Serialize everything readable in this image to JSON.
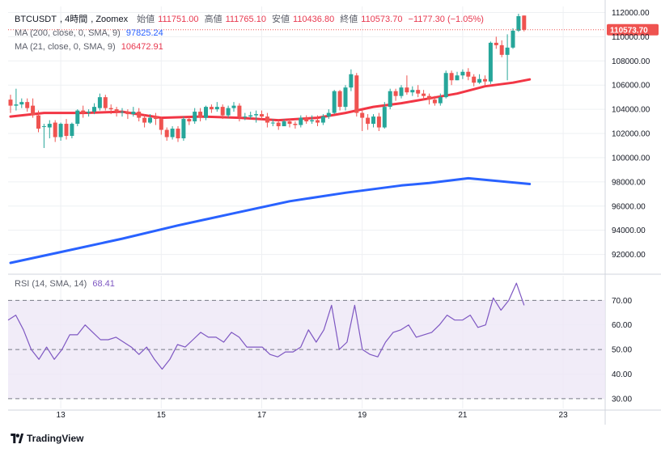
{
  "header": {
    "symbol": "BTCUSDT",
    "interval": "4時間",
    "exchange": "Zoomex",
    "open_label": "始値",
    "open": "111751.00",
    "high_label": "高値",
    "high": "111765.10",
    "low_label": "安値",
    "low": "110436.80",
    "close_label": "終値",
    "close": "110573.70",
    "change": "−1177.30 (−1.05%)"
  },
  "indicators": {
    "ma200_label": "MA (200, close, 0, SMA, 9)",
    "ma200_value": "97825.24",
    "ma21_label": "MA (21, close, 0, SMA, 9)",
    "ma21_value": "106472.91",
    "rsi_label": "RSI (14, SMA, 14)",
    "rsi_value": "68.41"
  },
  "colors": {
    "up": "#26a69a",
    "down": "#ef5350",
    "ma21": "#f23645",
    "ma200": "#2962ff",
    "rsi": "#7e57c2",
    "rsi_band": "#ede7f6",
    "grid": "#eef0f3"
  },
  "brand": {
    "name": "TradingView",
    "icon": "tradingview-logo-icon"
  },
  "chart_data": {
    "type": "candlestick",
    "price_axis": {
      "range": [
        90500,
        112500
      ],
      "ticks": [
        "112000.00",
        "110000.00",
        "108000.00",
        "106000.00",
        "104000.00",
        "102000.00",
        "100000.00",
        "98000.00",
        "96000.00",
        "94000.00",
        "92000.00"
      ]
    },
    "last_price_label": "110573.70",
    "x_labels": [
      {
        "i": 9,
        "label": "13"
      },
      {
        "i": 27,
        "label": "15"
      },
      {
        "i": 45,
        "label": "17"
      },
      {
        "i": 63,
        "label": "19"
      },
      {
        "i": 81,
        "label": "21"
      },
      {
        "i": 99,
        "label": "23"
      }
    ],
    "candles": [
      [
        104800,
        104300,
        105200,
        103700
      ],
      [
        104300,
        104400,
        105700,
        103900
      ],
      [
        104400,
        104600,
        104900,
        104100
      ],
      [
        104600,
        104100,
        104900,
        103800
      ],
      [
        104300,
        103500,
        104900,
        103300
      ],
      [
        103500,
        102400,
        103900,
        102100
      ],
      [
        102600,
        102600,
        102800,
        100800
      ],
      [
        102500,
        102800,
        103100,
        101600
      ],
      [
        102900,
        101700,
        103100,
        101300
      ],
      [
        101700,
        102800,
        102900,
        101400
      ],
      [
        102800,
        101800,
        103200,
        101500
      ],
      [
        101800,
        102800,
        102900,
        101600
      ],
      [
        102800,
        103900,
        104000,
        102600
      ],
      [
        103900,
        103700,
        104300,
        103300
      ],
      [
        103700,
        103800,
        104000,
        103400
      ],
      [
        103800,
        104200,
        104500,
        103600
      ],
      [
        104100,
        105000,
        105300,
        103900
      ],
      [
        105000,
        104100,
        105200,
        103900
      ],
      [
        104100,
        104000,
        104400,
        103600
      ],
      [
        104000,
        103800,
        104200,
        103400
      ],
      [
        103800,
        103800,
        104100,
        103400
      ],
      [
        103800,
        103600,
        104000,
        103200
      ],
      [
        103600,
        103800,
        104200,
        103400
      ],
      [
        103800,
        103300,
        104100,
        103000
      ],
      [
        103300,
        102900,
        103600,
        102500
      ],
      [
        102900,
        103300,
        103600,
        102800
      ],
      [
        103400,
        103200,
        103700,
        102700
      ],
      [
        103200,
        102300,
        103400,
        101900
      ],
      [
        102300,
        101700,
        102500,
        101400
      ],
      [
        101700,
        102400,
        102600,
        101500
      ],
      [
        102400,
        101600,
        102600,
        101300
      ],
      [
        101600,
        103200,
        103400,
        101400
      ],
      [
        103200,
        103000,
        103400,
        102700
      ],
      [
        103000,
        103800,
        104100,
        102800
      ],
      [
        103800,
        103300,
        104100,
        103000
      ],
      [
        103300,
        104200,
        104300,
        103100
      ],
      [
        104200,
        104000,
        104400,
        103700
      ],
      [
        104000,
        104200,
        104600,
        103800
      ],
      [
        104200,
        103500,
        104400,
        103200
      ],
      [
        103500,
        104100,
        104300,
        103300
      ],
      [
        104100,
        104300,
        104600,
        103800
      ],
      [
        104300,
        103400,
        104500,
        103000
      ],
      [
        103400,
        103400,
        103700,
        103100
      ],
      [
        103400,
        103500,
        103800,
        103200
      ],
      [
        103500,
        103600,
        103900,
        102900
      ],
      [
        103600,
        103400,
        103900,
        103100
      ],
      [
        103400,
        102900,
        103700,
        102500
      ],
      [
        102900,
        102900,
        103200,
        102600
      ],
      [
        102900,
        102600,
        103100,
        102300
      ],
      [
        102600,
        103000,
        103200,
        102700
      ],
      [
        103000,
        102800,
        103200,
        102500
      ],
      [
        102800,
        102700,
        103000,
        102400
      ],
      [
        102700,
        103300,
        103500,
        102500
      ],
      [
        103300,
        103000,
        103500,
        102800
      ],
      [
        103000,
        103100,
        103500,
        102800
      ],
      [
        103100,
        102900,
        103500,
        102600
      ],
      [
        102900,
        103400,
        103600,
        102700
      ],
      [
        103400,
        103700,
        104000,
        103200
      ],
      [
        103700,
        105500,
        105600,
        103600
      ],
      [
        105500,
        104200,
        105600,
        103900
      ],
      [
        104200,
        105800,
        106000,
        103900
      ],
      [
        105800,
        106900,
        107300,
        105500
      ],
      [
        106800,
        103700,
        107000,
        103400
      ],
      [
        103700,
        103300,
        103900,
        102200
      ],
      [
        103300,
        102800,
        103600,
        102300
      ],
      [
        102800,
        103400,
        103600,
        102500
      ],
      [
        103400,
        102500,
        103700,
        102200
      ],
      [
        102500,
        104200,
        104600,
        102400
      ],
      [
        104200,
        105500,
        105700,
        104000
      ],
      [
        105500,
        105100,
        105700,
        104700
      ],
      [
        105100,
        105800,
        106000,
        104900
      ],
      [
        105800,
        105400,
        106800,
        105200
      ],
      [
        105400,
        105600,
        105900,
        105100
      ],
      [
        105600,
        105300,
        106000,
        105000
      ],
      [
        105300,
        105100,
        105600,
        104800
      ],
      [
        105100,
        104800,
        105300,
        104400
      ],
      [
        104800,
        104500,
        105100,
        104300
      ],
      [
        104500,
        105000,
        105300,
        104300
      ],
      [
        105000,
        107000,
        107200,
        104900
      ],
      [
        107000,
        106400,
        107200,
        106000
      ],
      [
        106400,
        106800,
        107100,
        106400
      ],
      [
        106800,
        107100,
        107300,
        106500
      ],
      [
        107100,
        106700,
        107400,
        106400
      ],
      [
        106700,
        106200,
        106900,
        105900
      ],
      [
        106200,
        106500,
        106900,
        106100
      ],
      [
        106500,
        106300,
        106800,
        106000
      ],
      [
        106300,
        109500,
        109600,
        106100
      ],
      [
        109500,
        109300,
        110000,
        109000
      ],
      [
        109300,
        108500,
        109700,
        108300
      ],
      [
        108500,
        109100,
        110200,
        106400
      ],
      [
        109100,
        110500,
        110700,
        109000
      ],
      [
        110500,
        111700,
        111900,
        110400
      ],
      [
        111750,
        110570,
        111760,
        110440
      ]
    ],
    "ma21": [
      [
        0,
        103400
      ],
      [
        6,
        103700
      ],
      [
        13,
        103700
      ],
      [
        20,
        103800
      ],
      [
        27,
        103300
      ],
      [
        34,
        103400
      ],
      [
        41,
        103300
      ],
      [
        48,
        103100
      ],
      [
        55,
        103300
      ],
      [
        60,
        103700
      ],
      [
        65,
        104200
      ],
      [
        70,
        104500
      ],
      [
        75,
        104900
      ],
      [
        80,
        105300
      ],
      [
        85,
        105900
      ],
      [
        90,
        106200
      ],
      [
        93,
        106470
      ]
    ],
    "ma200": [
      [
        0,
        91300
      ],
      [
        10,
        92300
      ],
      [
        20,
        93300
      ],
      [
        30,
        94400
      ],
      [
        40,
        95400
      ],
      [
        50,
        96400
      ],
      [
        60,
        97100
      ],
      [
        70,
        97700
      ],
      [
        75,
        97900
      ],
      [
        82,
        98300
      ],
      [
        93,
        97825
      ]
    ],
    "rsi": {
      "range": [
        26,
        80
      ],
      "ticks": [
        "70.00",
        "60.00",
        "50.00",
        "40.00",
        "30.00"
      ],
      "bands": [
        70,
        50,
        30
      ],
      "values": [
        62,
        64,
        58,
        50,
        46,
        51,
        46,
        50,
        56,
        56,
        60,
        57,
        54,
        54,
        55,
        53,
        51,
        48,
        51,
        46,
        42,
        46,
        52,
        51,
        54,
        57,
        55,
        55,
        53,
        57,
        55,
        51,
        51,
        51,
        48,
        47,
        49,
        49,
        51,
        58,
        53,
        58,
        68,
        50,
        53,
        68,
        50,
        48,
        47,
        53,
        57,
        58,
        60,
        55,
        56,
        57,
        60,
        64,
        62,
        62,
        64,
        59,
        60,
        71,
        66,
        70,
        77,
        68
      ]
    }
  }
}
